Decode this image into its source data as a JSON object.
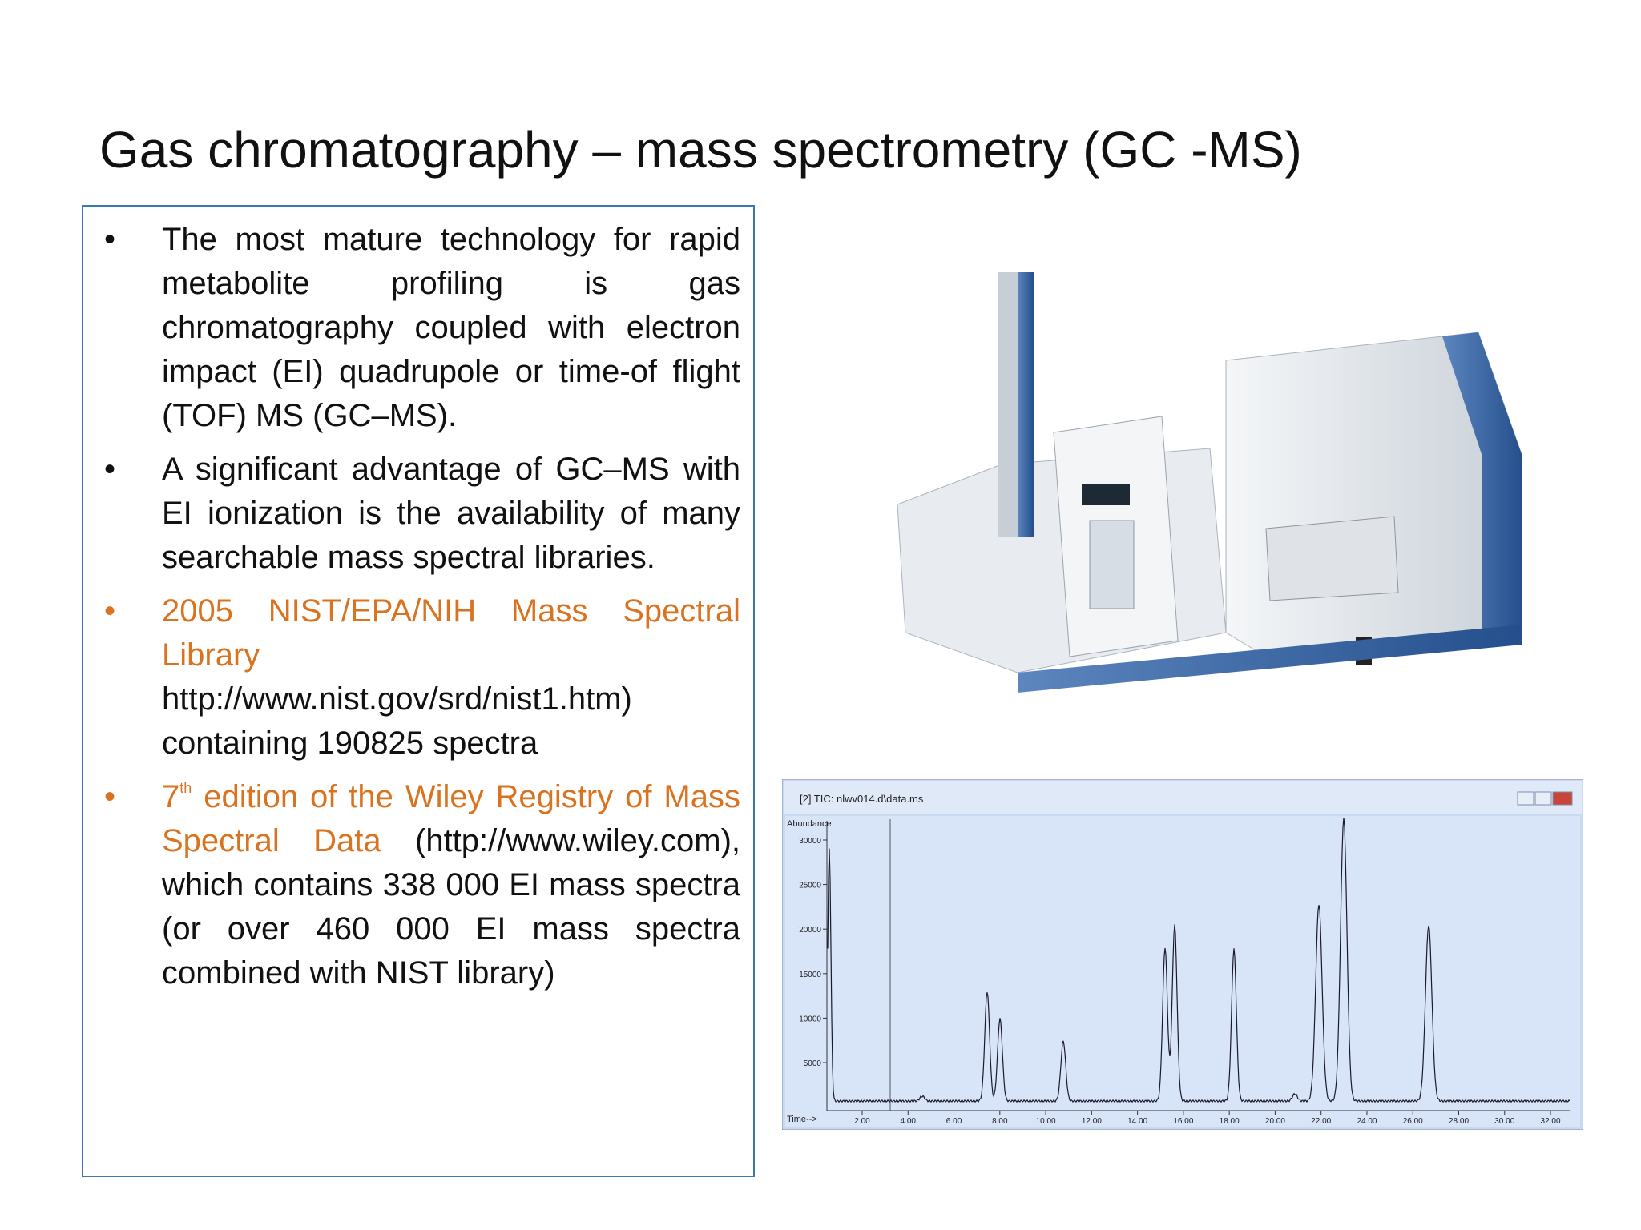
{
  "title": "Gas chromatography – mass spectrometry (GC -MS)",
  "bullets": [
    {
      "text": "The most mature technology for rapid metabolite profiling is gas chromatography coupled with electron impact (EI) quadrupole or time-of flight (TOF) MS (GC–MS)."
    },
    {
      "text": "A significant advantage of GC–MS with EI ionization is the availability of many searchable mass spectral libraries."
    },
    {
      "highlight": "2005 NIST/EPA/NIH Mass Spectral Library",
      "text": "http://www.nist.gov/srd/nist1.htm) containing 190825 spectra"
    },
    {
      "highlight_number": "7",
      "superscript": "th",
      "highlight": "edition of the Wiley Registry of Mass Spectral Data",
      "text": "(http://www.wiley.com), which contains 338 000 EI mass spectra (or over 460 000 EI mass spectra combined with NIST library)"
    }
  ],
  "chromatogram": {
    "window_title": "[2] TIC: nlwv014.d\\data.ms",
    "y_axis_label": "Abundance",
    "x_axis_label": "Time-->",
    "y_ticks": [
      "5000",
      "10000",
      "15000",
      "20000",
      "25000",
      "30000"
    ],
    "x_ticks": [
      "2.00",
      "4.00",
      "6.00",
      "8.00",
      "10.00",
      "12.00",
      "14.00",
      "16.00",
      "18.00",
      "20.00",
      "22.00",
      "24.00",
      "26.00",
      "28.00",
      "30.00",
      "32.00"
    ]
  }
}
